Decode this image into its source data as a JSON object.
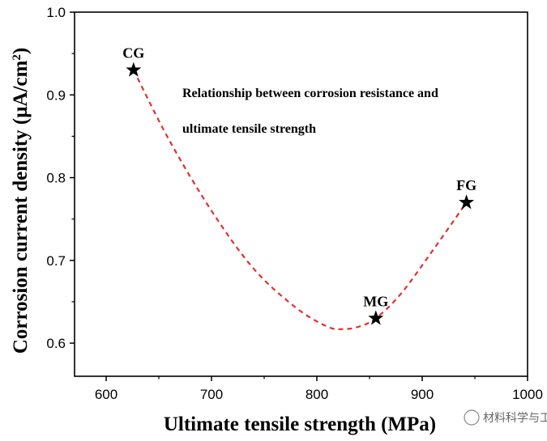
{
  "chart_data": {
    "type": "scatter",
    "title": "",
    "xlabel": "Ultimate tensile strength (MPa)",
    "ylabel_text": "Corrosion current density (μA/cm",
    "ylabel_sup": "2",
    "ylabel_close": ")",
    "xlim": [
      570,
      1000
    ],
    "ylim": [
      0.56,
      1.0
    ],
    "xticks": [
      600,
      700,
      800,
      900,
      1000
    ],
    "yticks": [
      0.6,
      0.7,
      0.8,
      0.9,
      1.0
    ],
    "points": [
      {
        "label": "CG",
        "x": 626,
        "y": 0.93
      },
      {
        "label": "MG",
        "x": 856,
        "y": 0.63
      },
      {
        "label": "FG",
        "x": 942,
        "y": 0.77
      }
    ],
    "fit_curve": {
      "style": "dashed",
      "x": [
        626,
        660,
        700,
        740,
        780,
        810,
        825,
        840,
        856,
        880,
        910,
        942
      ],
      "y": [
        0.93,
        0.845,
        0.76,
        0.69,
        0.643,
        0.62,
        0.617,
        0.62,
        0.63,
        0.66,
        0.712,
        0.77
      ]
    },
    "annotation_line1": "Relationship between corrosion resistance and",
    "annotation_line2": "ultimate tensile strength",
    "grid": false,
    "legend": "none"
  },
  "colors": {
    "curve": "#e03030",
    "marker": "#000000",
    "axis": "#000000"
  },
  "watermark": "材料科学与工程"
}
